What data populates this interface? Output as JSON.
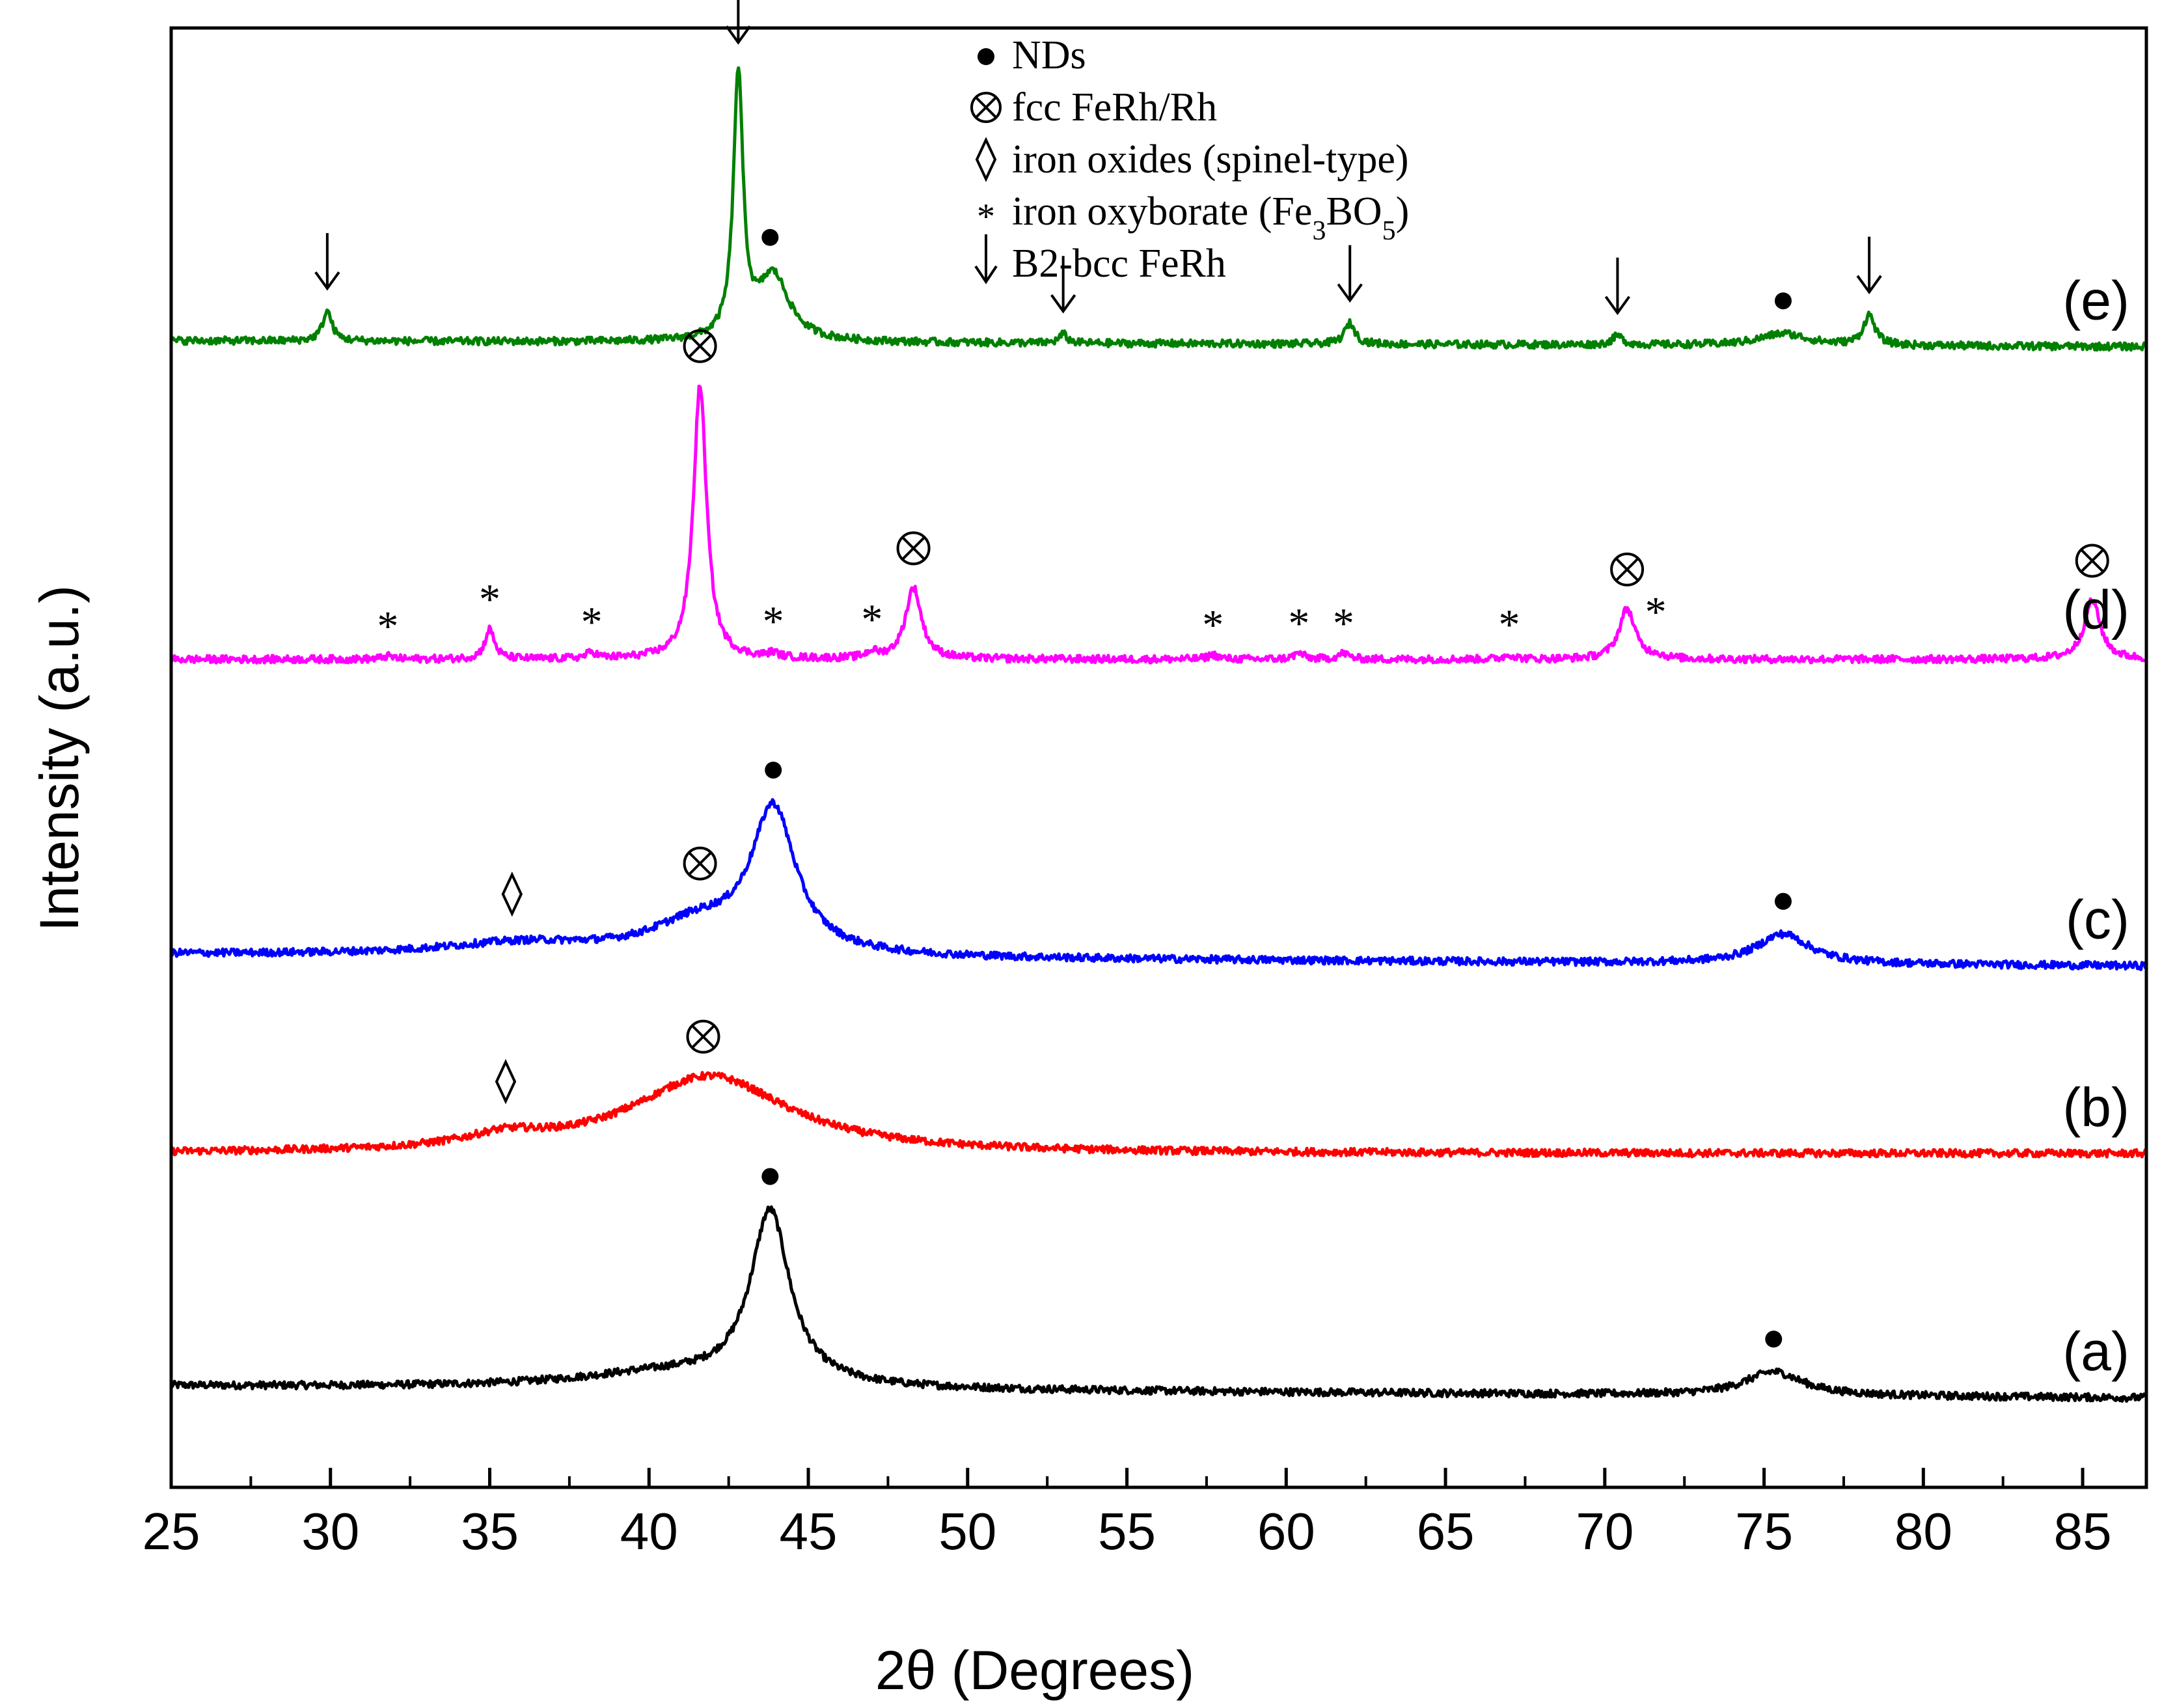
{
  "chart_data": {
    "type": "line",
    "title": "",
    "xlabel": "2θ (Degrees)",
    "ylabel": "Intensity (a.u.)",
    "xlim": [
      25,
      87
    ],
    "xticks": [
      25,
      30,
      35,
      40,
      45,
      50,
      55,
      60,
      65,
      70,
      75,
      80,
      85
    ],
    "yticks_shown": false,
    "legend": {
      "placement": "top-center",
      "entries": [
        {
          "symbol": "●",
          "label": "NDs"
        },
        {
          "symbol": "⊗",
          "label": "fcc FeRh/Rh"
        },
        {
          "symbol": "◊",
          "label": "iron oxides (spinel-type)"
        },
        {
          "symbol": "*",
          "label": "iron oxyborate (Fe",
          "sub1": "3",
          "mid": "BO",
          "sub2": "5",
          "tail": ")"
        },
        {
          "symbol": "↓",
          "label": "B2-bcc FeRh"
        }
      ]
    },
    "series": [
      {
        "name": "(a)",
        "color": "#000000",
        "offset": 0.0,
        "baseline": 0.04,
        "peaks": [
          [
            43.8,
            0.58,
            0.75
          ],
          [
            75.3,
            0.08,
            1.1
          ],
          [
            40.5,
            0.05,
            3.5
          ]
        ],
        "markers": [
          {
            "symbol": "●",
            "x": 43.8
          },
          {
            "symbol": "●",
            "x": 75.3
          }
        ]
      },
      {
        "name": "(b)",
        "color": "#ff0000",
        "offset": 0.82,
        "baseline": 0.0,
        "peaks": [
          [
            41.9,
            0.26,
            3.0
          ],
          [
            35.5,
            0.04,
            1.5
          ]
        ],
        "markers": [
          {
            "symbol": "◊",
            "x": 35.5
          },
          {
            "symbol": "⊗",
            "x": 41.7
          }
        ]
      },
      {
        "name": "(c)",
        "color": "#0000ff",
        "offset": 1.45,
        "baseline": 0.04,
        "peaks": [
          [
            43.9,
            0.48,
            0.85
          ],
          [
            41.5,
            0.1,
            1.8
          ],
          [
            75.6,
            0.1,
            1.0
          ],
          [
            36.0,
            0.04,
            3.0
          ]
        ],
        "markers": [
          {
            "symbol": "◊",
            "x": 35.7
          },
          {
            "symbol": "⊗",
            "x": 41.6
          },
          {
            "symbol": "●",
            "x": 43.9
          },
          {
            "symbol": "●",
            "x": 75.6
          }
        ]
      },
      {
        "name": "(d)",
        "color": "#ff00ff",
        "offset": 2.48,
        "baseline": 0.0,
        "peaks": [
          [
            41.6,
            0.92,
            0.25
          ],
          [
            48.3,
            0.24,
            0.3
          ],
          [
            70.7,
            0.17,
            0.3
          ],
          [
            85.3,
            0.2,
            0.3
          ],
          [
            35.0,
            0.1,
            0.18
          ],
          [
            31.8,
            0.01,
            0.2
          ],
          [
            38.2,
            0.02,
            0.2
          ],
          [
            43.9,
            0.015,
            0.2
          ],
          [
            47.0,
            0.02,
            0.2
          ],
          [
            57.7,
            0.015,
            0.2
          ],
          [
            60.4,
            0.02,
            0.2
          ],
          [
            61.8,
            0.02,
            0.2
          ],
          [
            67.0,
            0.015,
            0.2
          ],
          [
            71.6,
            0.01,
            0.2
          ]
        ],
        "markers": [
          {
            "symbol": "*",
            "x": 31.8
          },
          {
            "symbol": "*",
            "x": 35.0
          },
          {
            "symbol": "*",
            "x": 38.2
          },
          {
            "symbol": "⊗",
            "x": 41.6
          },
          {
            "symbol": "*",
            "x": 43.9
          },
          {
            "symbol": "*",
            "x": 47.0
          },
          {
            "symbol": "⊗",
            "x": 48.3
          },
          {
            "symbol": "*",
            "x": 57.7
          },
          {
            "symbol": "*",
            "x": 60.4
          },
          {
            "symbol": "*",
            "x": 61.8
          },
          {
            "symbol": "*",
            "x": 67.0
          },
          {
            "symbol": "⊗",
            "x": 70.7
          },
          {
            "symbol": "*",
            "x": 71.6
          },
          {
            "symbol": "⊗",
            "x": 85.3
          }
        ]
      },
      {
        "name": "(e)",
        "color": "#008000",
        "offset": 3.53,
        "baseline": 0.02,
        "peaks": [
          [
            42.8,
            0.88,
            0.18
          ],
          [
            43.9,
            0.22,
            0.6
          ],
          [
            29.9,
            0.1,
            0.18
          ],
          [
            62.0,
            0.07,
            0.2
          ],
          [
            78.3,
            0.1,
            0.22
          ],
          [
            53.0,
            0.03,
            0.15
          ],
          [
            70.4,
            0.03,
            0.2
          ],
          [
            75.6,
            0.04,
            0.9
          ]
        ],
        "markers": [
          {
            "symbol": "↓",
            "x": 29.9
          },
          {
            "symbol": "↓",
            "x": 42.8
          },
          {
            "symbol": "●",
            "x": 43.8
          },
          {
            "symbol": "↓",
            "x": 53.0
          },
          {
            "symbol": "↓",
            "x": 62.0
          },
          {
            "symbol": "↓",
            "x": 70.4
          },
          {
            "symbol": "●",
            "x": 75.6
          },
          {
            "symbol": "↓",
            "x": 78.3
          }
        ]
      }
    ],
    "ylim": [
      -0.3,
      4.6
    ]
  }
}
